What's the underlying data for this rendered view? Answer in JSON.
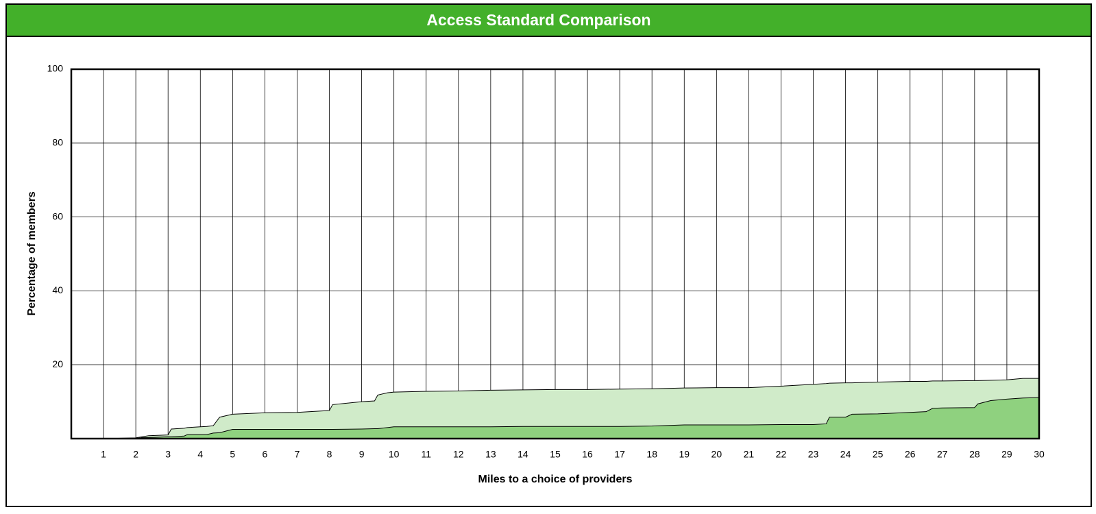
{
  "chart_data": {
    "type": "area",
    "title": "Access Standard Comparison",
    "x_label": "Miles to a choice of providers",
    "y_label": "Percentage of members",
    "x": [
      0,
      1,
      2,
      2.2,
      2.4,
      3,
      3.1,
      3.5,
      3.6,
      4,
      4.2,
      4.4,
      4.6,
      5,
      5.5,
      6,
      7,
      8,
      8.1,
      9,
      9.4,
      9.5,
      9.8,
      10,
      11,
      12,
      13,
      14,
      15,
      16,
      17,
      18,
      19,
      20,
      21,
      22,
      23,
      23.4,
      23.5,
      24,
      24.2,
      25,
      26,
      26.5,
      26.7,
      27,
      28,
      28.1,
      28.5,
      29,
      29.5,
      30
    ],
    "series": [
      {
        "color": "#d0ebc9",
        "values": [
          0,
          0,
          0.2,
          0.5,
          0.8,
          1,
          2.6,
          2.8,
          3,
          3.2,
          3.3,
          3.5,
          5.8,
          6.6,
          6.8,
          7,
          7.1,
          7.6,
          9.2,
          10,
          10.2,
          11.8,
          12.4,
          12.6,
          12.8,
          12.9,
          13.1,
          13.2,
          13.3,
          13.3,
          13.4,
          13.5,
          13.7,
          13.8,
          13.8,
          14.2,
          14.7,
          14.9,
          15,
          15.1,
          15.1,
          15.3,
          15.5,
          15.5,
          15.6,
          15.6,
          15.7,
          15.7,
          15.8,
          15.9,
          16.3,
          16.3
        ]
      },
      {
        "color": "#8fd17f",
        "values": [
          0,
          0,
          0,
          0.3,
          0.3,
          0.5,
          0.5,
          0.7,
          1.1,
          1.1,
          1.1,
          1.5,
          1.6,
          2.5,
          2.5,
          2.5,
          2.5,
          2.5,
          2.5,
          2.6,
          2.7,
          2.7,
          3,
          3.2,
          3.2,
          3.2,
          3.2,
          3.3,
          3.3,
          3.3,
          3.3,
          3.4,
          3.7,
          3.7,
          3.7,
          3.8,
          3.8,
          4,
          5.8,
          5.8,
          6.6,
          6.7,
          7.1,
          7.3,
          8.2,
          8.3,
          8.4,
          9.4,
          10.3,
          10.7,
          11,
          11.1
        ]
      }
    ],
    "xlim": [
      0,
      30
    ],
    "xticks": [
      1,
      2,
      3,
      4,
      5,
      6,
      7,
      8,
      9,
      10,
      11,
      12,
      13,
      14,
      15,
      16,
      17,
      18,
      19,
      20,
      21,
      22,
      23,
      24,
      25,
      26,
      27,
      28,
      29,
      30
    ],
    "ylim": [
      0,
      100
    ],
    "yticks": [
      20,
      40,
      60,
      80,
      100
    ],
    "grid": true,
    "header_color": "#43b02a"
  }
}
